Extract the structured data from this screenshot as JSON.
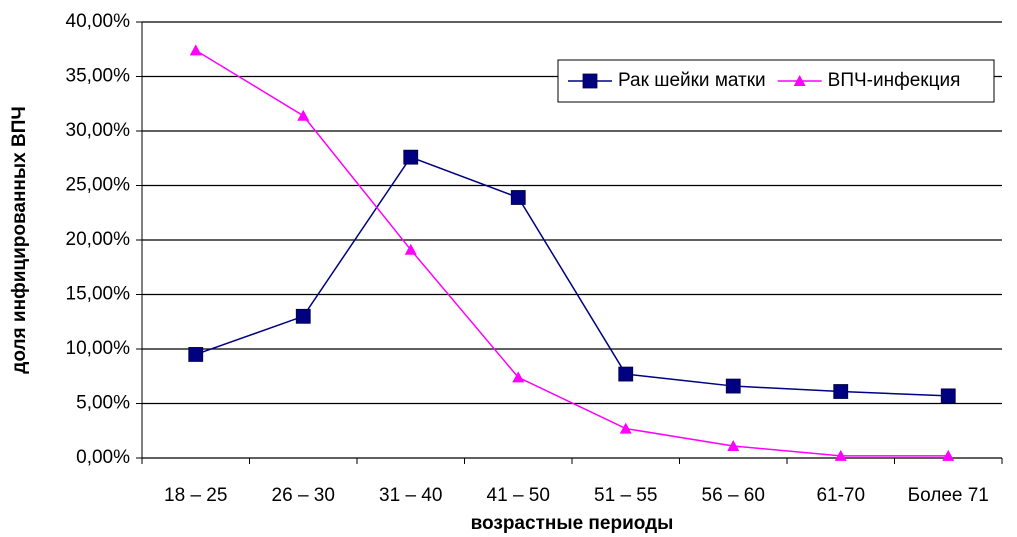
{
  "chart_data": {
    "type": "line",
    "x_label": "возрастные периоды",
    "y_label": "доля инфицированных ВПЧ",
    "categories": [
      "18 – 25",
      "26 – 30",
      "31 – 40",
      "41 – 50",
      "51 – 55",
      "56 – 60",
      "61-70",
      "Более 71"
    ],
    "series": [
      {
        "name": "Рак шейки матки",
        "color": "#000080",
        "marker": "square",
        "values": [
          9.5,
          13.0,
          27.6,
          23.9,
          7.7,
          6.6,
          6.1,
          5.7
        ]
      },
      {
        "name": "ВПЧ-инфекция",
        "color": "#ff00ff",
        "marker": "triangle",
        "values": [
          37.4,
          31.4,
          19.1,
          7.4,
          2.7,
          1.1,
          0.2,
          0.2
        ]
      }
    ],
    "ylim": [
      0,
      40
    ],
    "yticks": [
      {
        "value": 0,
        "label": "0,00%"
      },
      {
        "value": 5,
        "label": "5,00%"
      },
      {
        "value": 10,
        "label": "10,00%"
      },
      {
        "value": 15,
        "label": "15,00%"
      },
      {
        "value": 20,
        "label": "20,00%"
      },
      {
        "value": 25,
        "label": "25,00%"
      },
      {
        "value": 30,
        "label": "30,00%"
      },
      {
        "value": 35,
        "label": "35,00%"
      },
      {
        "value": 40,
        "label": "40,00%"
      }
    ],
    "grid": true,
    "legend": "upper right"
  }
}
